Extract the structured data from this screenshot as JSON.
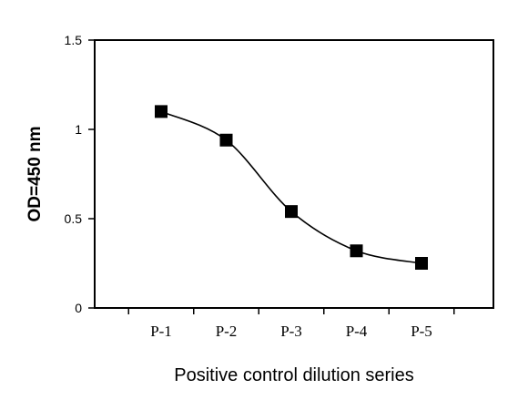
{
  "chart_data": {
    "type": "line",
    "title": "",
    "xlabel": "Positive control dilution series",
    "ylabel": "OD=450 nm",
    "categories": [
      "P-1",
      "P-2",
      "P-3",
      "P-4",
      "P-5"
    ],
    "series": [
      {
        "name": "",
        "values": [
          1.1,
          0.94,
          0.54,
          0.32,
          0.25
        ],
        "marker": "square",
        "line": "smooth",
        "color": "#000000"
      }
    ],
    "ylim": [
      0,
      1.5
    ],
    "yticks": [
      {
        "value": 0,
        "label": "0"
      },
      {
        "value": 0.5,
        "label": "0.5"
      },
      {
        "value": 1,
        "label": "1"
      },
      {
        "value": 1.5,
        "label": "1.5"
      }
    ],
    "grid": false,
    "legend": "none"
  }
}
